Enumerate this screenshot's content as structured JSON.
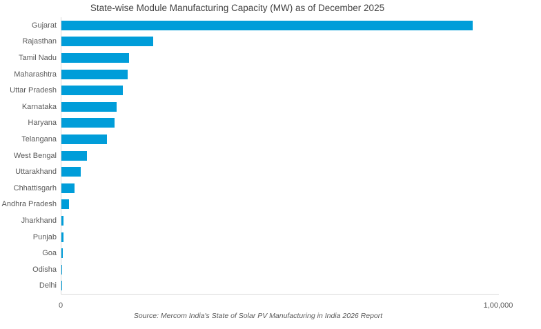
{
  "chart_data": {
    "type": "bar",
    "orientation": "horizontal",
    "title": "State-wise Module Manufacturing Capacity (MW) as of December 2025",
    "source": "Source: Mercom India's State of Solar PV Manufacturing in India 2026 Report",
    "categories": [
      "Gujarat",
      "Rajasthan",
      "Tamil Nadu",
      "Maharashtra",
      "Uttar Pradesh",
      "Karnataka",
      "Haryana",
      "Telangana",
      "West Bengal",
      "Uttarakhand",
      "Chhattisgarh",
      "Andhra Pradesh",
      "Jharkhand",
      "Punjab",
      "Goa",
      "Odisha",
      "Delhi"
    ],
    "values": [
      94000,
      21000,
      15400,
      15100,
      14000,
      12600,
      12100,
      10400,
      5800,
      4400,
      3000,
      1700,
      500,
      450,
      300,
      60,
      15
    ],
    "xlabel": "",
    "ylabel": "",
    "xlim": [
      0,
      100000
    ],
    "x_ticks": [
      "0",
      "1,00,000"
    ],
    "grid": false,
    "legend": false,
    "colors": {
      "bar": "#009DD9",
      "axis_line": "#D9D9D9",
      "labels": "#595959",
      "title": "#404040"
    }
  }
}
